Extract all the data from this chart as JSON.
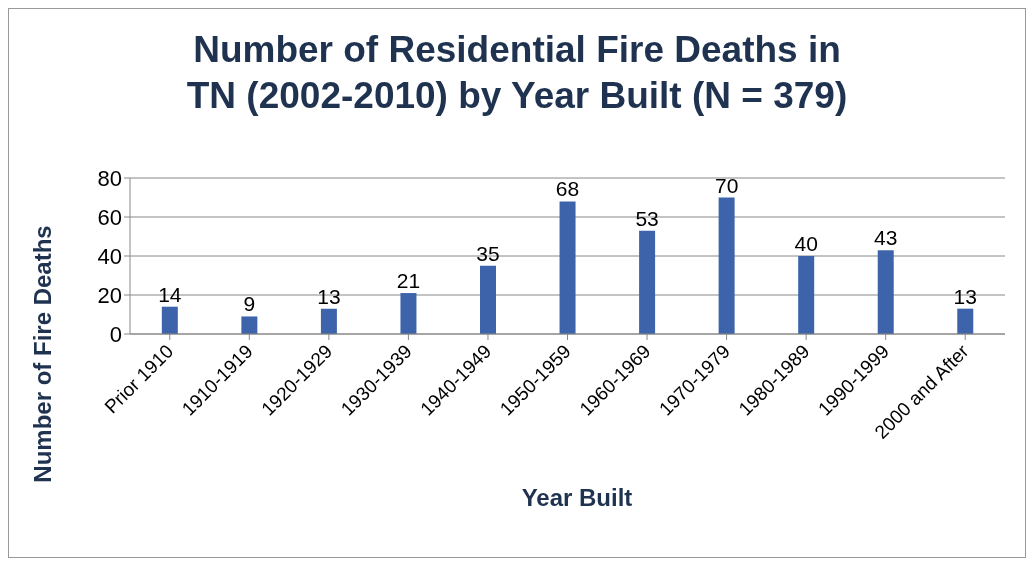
{
  "chart_data": {
    "type": "bar",
    "title": "Number of Residential Fire Deaths in TN (2002-2010) by Year Built (N = 379)",
    "xlabel": "Year Built",
    "ylabel": "Number of Fire Deaths",
    "categories": [
      "Prior 1910",
      "1910-1919",
      "1920-1929",
      "1930-1939",
      "1940-1949",
      "1950-1959",
      "1960-1969",
      "1970-1979",
      "1980-1989",
      "1990-1999",
      "2000 and After"
    ],
    "values": [
      14,
      9,
      13,
      21,
      35,
      68,
      53,
      70,
      40,
      43,
      13
    ],
    "color": "#3d64aa",
    "ylim": [
      0,
      80
    ],
    "yticks": [
      0,
      20,
      40,
      60,
      80
    ],
    "grid": "y",
    "data_labels": true,
    "legend": false
  }
}
